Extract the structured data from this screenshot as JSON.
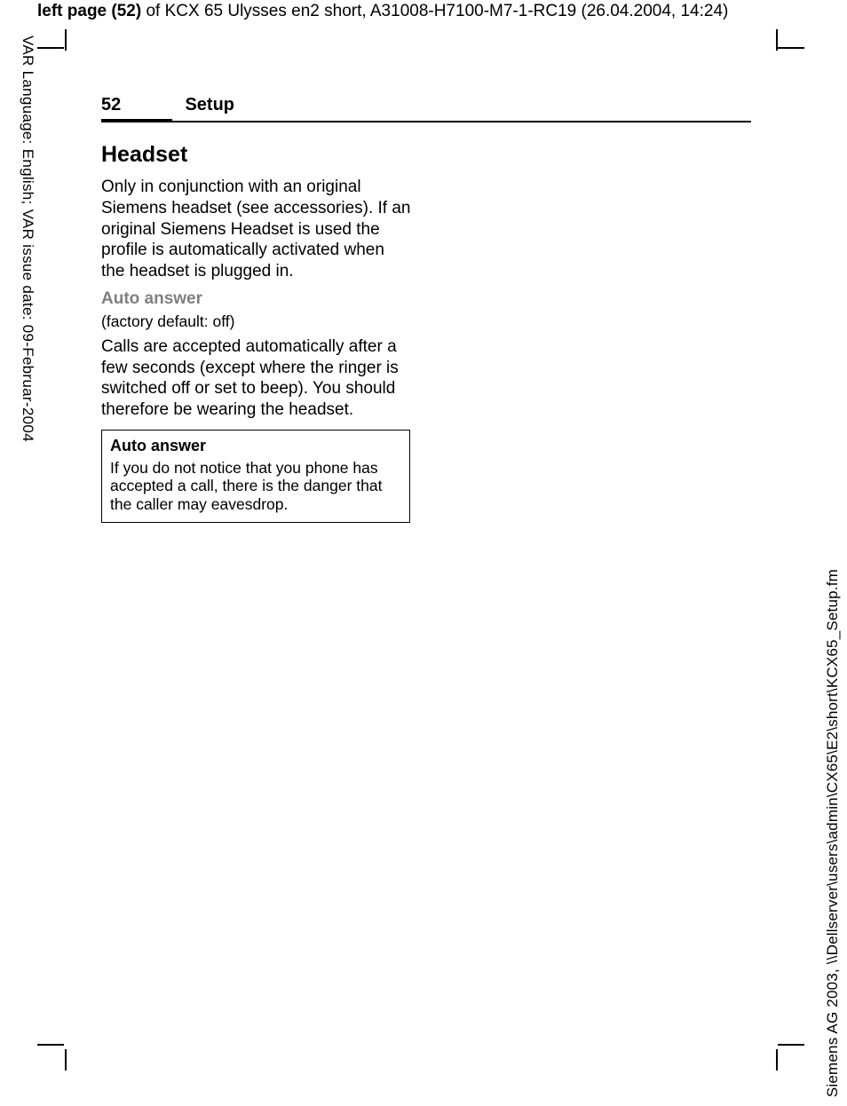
{
  "header": {
    "bold": "left page (52)",
    "rest": " of KCX 65 Ulysses en2 short, A31008-H7100-M7-1-RC19 (26.04.2004, 14:24)"
  },
  "left_margin": "VAR Language: English; VAR issue date: 09-Februar-2004",
  "right_margin": "Siemens AG 2003, \\\\Dellserver\\users\\admin\\CX65\\E2\\short\\KCX65_Setup.fm",
  "page": {
    "number": "52",
    "section": "Setup"
  },
  "content": {
    "h1": "Headset",
    "para1": "Only in conjunction with an original Siemens headset (see accessories). If an original Siemens Headset is used the profile is automatically activated when the headset is plugged in.",
    "subhead1": "Auto answer",
    "default_note": "(factory default: off)",
    "para2": "Calls are accepted automatically after a few seconds (except where the ringer is switched off or set to beep). You should therefore be wearing the headset.",
    "box": {
      "title": "Auto answer",
      "body": "If you do not notice that you phone has accepted a call, there is the danger that the caller may eavesdrop."
    }
  },
  "colors": {
    "text": "#000000",
    "gray": "#808080",
    "background": "#ffffff"
  },
  "fontsizes": {
    "top_header": 19,
    "margin_text": 17,
    "page_header": 20,
    "h1": 25,
    "body": 19,
    "note": 17.5
  }
}
